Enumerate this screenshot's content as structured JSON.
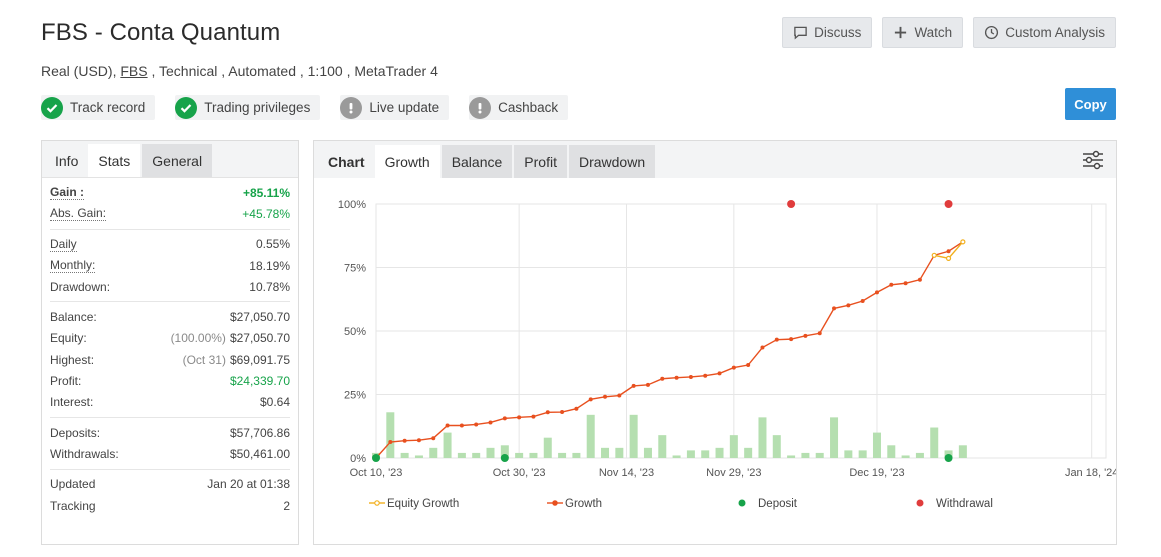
{
  "header": {
    "title": "FBS - Conta Quantum",
    "subtitle_prefix": "Real (USD), ",
    "broker_link": "FBS",
    "subtitle_suffix": " , Technical , Automated , 1:100 , MetaTrader 4"
  },
  "actions": {
    "discuss": "Discuss",
    "watch": "Watch",
    "custom_analysis": "Custom Analysis",
    "copy": "Copy"
  },
  "badges": [
    {
      "label": "Track record",
      "status": "ok"
    },
    {
      "label": "Trading privileges",
      "status": "ok"
    },
    {
      "label": "Live update",
      "status": "no"
    },
    {
      "label": "Cashback",
      "status": "no"
    }
  ],
  "stats_tabs": [
    "Info",
    "Stats",
    "General"
  ],
  "stats": {
    "gain_label": "Gain :",
    "gain": "+85.11%",
    "abs_gain_label": "Abs. Gain:",
    "abs_gain": "+45.78%",
    "daily_label": "Daily",
    "daily": "0.55%",
    "monthly_label": "Monthly:",
    "monthly": "18.19%",
    "drawdown_label": "Drawdown:",
    "drawdown": "10.78%",
    "balance_label": "Balance:",
    "balance": "$27,050.70",
    "equity_label": "Equity:",
    "equity_pct": "(100.00%)",
    "equity": "$27,050.70",
    "highest_label": "Highest:",
    "highest_date": "(Oct 31)",
    "highest": "$69,091.75",
    "profit_label": "Profit:",
    "profit": "$24,339.70",
    "interest_label": "Interest:",
    "interest": "$0.64",
    "deposits_label": "Deposits:",
    "deposits": "$57,706.86",
    "withdrawals_label": "Withdrawals:",
    "withdrawals": "$50,461.00",
    "updated_label": "Updated",
    "updated": "Jan 20 at 01:38",
    "tracking_label": "Tracking",
    "tracking": "2"
  },
  "chart_tabs": [
    "Chart",
    "Growth",
    "Balance",
    "Profit",
    "Drawdown"
  ],
  "colors": {
    "growth": "#e8501f",
    "equity": "#f2b01e",
    "deposit": "#17a34a",
    "withdrawal": "#e03c3c",
    "bars": "#b5dfb0",
    "grid": "#e6e6e6"
  },
  "chart_data": {
    "type": "line",
    "ylim": [
      0,
      100
    ],
    "yticks": [
      "0%",
      "25%",
      "50%",
      "75%",
      "100%"
    ],
    "xticks": [
      "Oct 10, '23",
      "Oct 30, '23",
      "Nov 14, '23",
      "Nov 29, '23",
      "Dec 19, '23",
      "Jan 18, '24"
    ],
    "xtick_days": [
      0,
      20,
      35,
      50,
      70,
      100
    ],
    "x_range_days": [
      0,
      102
    ],
    "legend": [
      "Equity Growth",
      "Growth",
      "Deposit",
      "Withdrawal"
    ],
    "legend_position": "bottom",
    "growth": [
      [
        0,
        0
      ],
      [
        2,
        6.3
      ],
      [
        4,
        6.8
      ],
      [
        6,
        7
      ],
      [
        8,
        7.8
      ],
      [
        10,
        12.8
      ],
      [
        12,
        12.8
      ],
      [
        14,
        13.2
      ],
      [
        16,
        14
      ],
      [
        18,
        15.6
      ],
      [
        20,
        16
      ],
      [
        22,
        16.3
      ],
      [
        24,
        18
      ],
      [
        26,
        18.1
      ],
      [
        28,
        19.4
      ],
      [
        30,
        23.1
      ],
      [
        32,
        24.1
      ],
      [
        34,
        24.6
      ],
      [
        36,
        28.4
      ],
      [
        38,
        28.8
      ],
      [
        40,
        31.2
      ],
      [
        42,
        31.6
      ],
      [
        44,
        31.9
      ],
      [
        46,
        32.4
      ],
      [
        48,
        33.3
      ],
      [
        50,
        35.6
      ],
      [
        52,
        36.6
      ],
      [
        54,
        43.5
      ],
      [
        56,
        46.6
      ],
      [
        58,
        46.8
      ],
      [
        60,
        48.1
      ],
      [
        62,
        49.1
      ],
      [
        64,
        58.9
      ],
      [
        66,
        60.1
      ],
      [
        68,
        61.8
      ],
      [
        70,
        65.2
      ],
      [
        72,
        68.2
      ],
      [
        74,
        68.8
      ],
      [
        76,
        70.2
      ],
      [
        78,
        79.8
      ],
      [
        80,
        81.4
      ],
      [
        82,
        85.1
      ]
    ],
    "equity_growth": [
      [
        78,
        79.8
      ],
      [
        80,
        78.6
      ],
      [
        82,
        85.1
      ]
    ],
    "deposits_at_days": [
      0,
      18,
      80
    ],
    "withdrawals_at_days": [
      58,
      80
    ],
    "volume_bars": [
      [
        0,
        2
      ],
      [
        2,
        18
      ],
      [
        4,
        2
      ],
      [
        6,
        1
      ],
      [
        8,
        4
      ],
      [
        10,
        10
      ],
      [
        12,
        2
      ],
      [
        14,
        2
      ],
      [
        16,
        4
      ],
      [
        18,
        5
      ],
      [
        20,
        2
      ],
      [
        22,
        2
      ],
      [
        24,
        8
      ],
      [
        26,
        2
      ],
      [
        28,
        2
      ],
      [
        30,
        17
      ],
      [
        32,
        4
      ],
      [
        34,
        4
      ],
      [
        36,
        17
      ],
      [
        38,
        4
      ],
      [
        40,
        9
      ],
      [
        42,
        1
      ],
      [
        44,
        3
      ],
      [
        46,
        3
      ],
      [
        48,
        4
      ],
      [
        50,
        9
      ],
      [
        52,
        4
      ],
      [
        54,
        16
      ],
      [
        56,
        9
      ],
      [
        58,
        1
      ],
      [
        60,
        2
      ],
      [
        62,
        2
      ],
      [
        64,
        16
      ],
      [
        66,
        3
      ],
      [
        68,
        3
      ],
      [
        70,
        10
      ],
      [
        72,
        5
      ],
      [
        74,
        1
      ],
      [
        76,
        2
      ],
      [
        78,
        12
      ],
      [
        80,
        3
      ],
      [
        82,
        5
      ]
    ]
  }
}
